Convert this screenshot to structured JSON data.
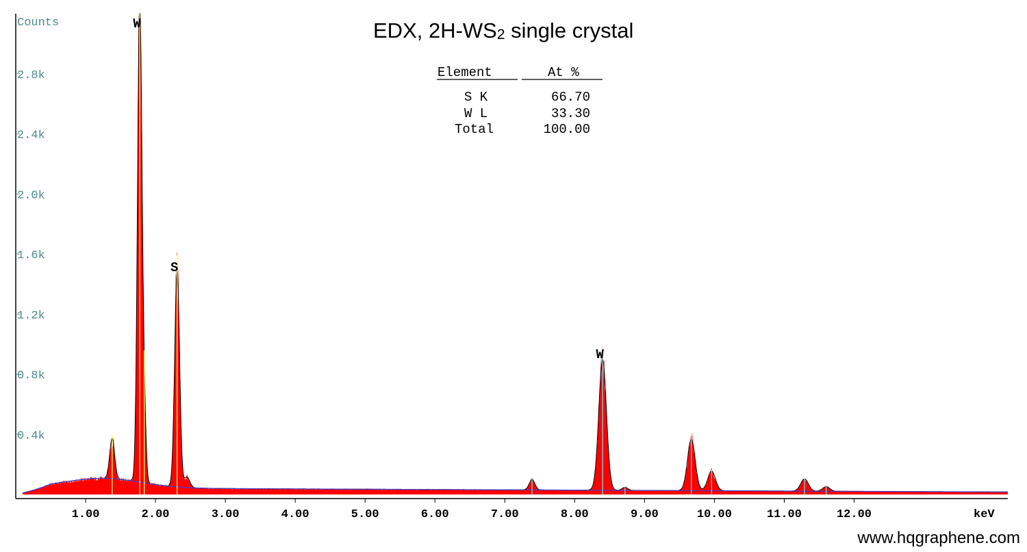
{
  "chart_data": {
    "type": "area",
    "title": "EDX, 2H-WS",
    "title_subscript": "2",
    "title_suffix": " single crystal",
    "ylabel": "Counts",
    "xlabel": "keV",
    "xlim": [
      0.0,
      14.2
    ],
    "ylim": [
      0,
      3200
    ],
    "x_ticks": [
      1.0,
      2.0,
      3.0,
      4.0,
      5.0,
      6.0,
      7.0,
      8.0,
      9.0,
      10.0,
      11.0,
      12.0
    ],
    "x_tick_labels": [
      "1.00",
      "2.00",
      "3.00",
      "4.00",
      "5.00",
      "6.00",
      "7.00",
      "8.00",
      "9.00",
      "10.00",
      "11.00",
      "12.00"
    ],
    "y_ticks": [
      400,
      800,
      1200,
      1600,
      2000,
      2400,
      2800
    ],
    "y_tick_labels": [
      "0.4k",
      "0.8k",
      "1.2k",
      "1.6k",
      "2.0k",
      "2.4k",
      "2.8k"
    ],
    "background": {
      "base": 45,
      "hump_center": 1.25,
      "hump_width": 0.55,
      "hump_height": 65,
      "tail_slope": -2
    },
    "peaks": [
      {
        "center": 1.38,
        "height": 270,
        "width": 0.035
      },
      {
        "center": 1.775,
        "height": 3200,
        "width": 0.032
      },
      {
        "center": 1.84,
        "height": 420,
        "width": 0.025
      },
      {
        "center": 2.31,
        "height": 1450,
        "width": 0.035
      },
      {
        "center": 2.45,
        "height": 70,
        "width": 0.04
      },
      {
        "center": 7.39,
        "height": 70,
        "width": 0.04
      },
      {
        "center": 8.4,
        "height": 870,
        "width": 0.055
      },
      {
        "center": 8.72,
        "height": 20,
        "width": 0.04
      },
      {
        "center": 9.67,
        "height": 340,
        "width": 0.055
      },
      {
        "center": 9.96,
        "height": 130,
        "width": 0.055
      },
      {
        "center": 11.29,
        "height": 80,
        "width": 0.055
      },
      {
        "center": 11.6,
        "height": 30,
        "width": 0.05
      }
    ],
    "marker_lines": [
      {
        "x": 1.38,
        "color": "#ffff66"
      },
      {
        "x": 1.775,
        "color": "#ffff66"
      },
      {
        "x": 1.84,
        "color": "#ffff66"
      },
      {
        "x": 2.31,
        "color": "#ffff66"
      },
      {
        "x": 7.39,
        "color": "#66ddee"
      },
      {
        "x": 8.4,
        "color": "#66ddee"
      },
      {
        "x": 8.72,
        "color": "#66ddee"
      },
      {
        "x": 9.67,
        "color": "#66ddee"
      },
      {
        "x": 9.96,
        "color": "#66ddee"
      },
      {
        "x": 11.29,
        "color": "#66ddee"
      },
      {
        "x": 11.6,
        "color": "#66ddee"
      }
    ],
    "peak_labels": [
      {
        "text": "W",
        "x": 1.775,
        "y": 3200
      },
      {
        "text": "S",
        "x": 2.31,
        "y": 1450
      },
      {
        "text": "W",
        "x": 8.4,
        "y": 870
      }
    ],
    "fill_color": "#ff0000",
    "envelope_color": "#000000",
    "background_color": "#4040cc",
    "quant_table": {
      "headers": [
        "Element",
        "At %"
      ],
      "rows": [
        [
          "S K",
          "66.70"
        ],
        [
          "W L",
          "33.30"
        ],
        [
          "Total",
          "100.00"
        ]
      ]
    }
  },
  "watermark": "www.hqgraphene.com"
}
